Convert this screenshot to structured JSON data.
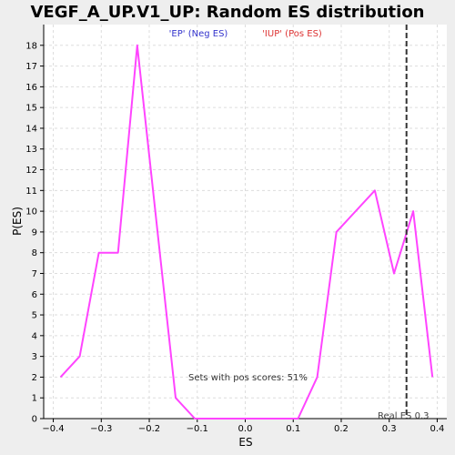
{
  "chart_data": {
    "type": "line",
    "title": "VEGF_A_UP.V1_UP: Random ES distribution",
    "xlabel": "ES",
    "ylabel": "P(ES)",
    "xlim": [
      -0.42,
      0.42
    ],
    "ylim": [
      0,
      19
    ],
    "x_ticks": [
      -0.4,
      -0.3,
      -0.2,
      -0.1,
      0.0,
      0.1,
      0.2,
      0.3,
      0.4
    ],
    "x_tick_labels": [
      "−0.4",
      "−0.3",
      "−0.2",
      "−0.1",
      "0.0",
      "0.1",
      "0.2",
      "0.3",
      "0.4"
    ],
    "y_ticks": [
      0,
      1,
      2,
      3,
      4,
      5,
      6,
      7,
      8,
      9,
      10,
      11,
      12,
      13,
      14,
      15,
      16,
      17,
      18
    ],
    "y_tick_labels": [
      "0",
      "1",
      "2",
      "3",
      "4",
      "5",
      "6",
      "7",
      "8",
      "9",
      "10",
      "11",
      "12",
      "13",
      "14",
      "15",
      "16",
      "17",
      "18"
    ],
    "grid": true,
    "series": [
      {
        "color": "#ff44ff",
        "x": [
          -0.385,
          -0.345,
          -0.305,
          -0.265,
          -0.225,
          -0.145,
          -0.105,
          -0.065,
          -0.025,
          0.025,
          0.065,
          0.11,
          0.15,
          0.19,
          0.27,
          0.31,
          0.35,
          0.39
        ],
        "y": [
          2,
          3,
          8,
          8,
          18,
          1,
          0,
          0,
          0,
          0,
          0,
          0,
          2,
          9,
          11,
          7,
          10,
          2
        ]
      }
    ],
    "real_es": 0.336,
    "real_es_color": "#333333",
    "annotations": {
      "neg_label": "'EP' (Neg ES)",
      "neg_color": "#3333cc",
      "pos_label": "'IUP' (Pos ES)",
      "pos_color": "#dd3333",
      "pos_scores": "Sets with pos scores: 51%",
      "real_es_label": "Real ES 0.3"
    }
  }
}
